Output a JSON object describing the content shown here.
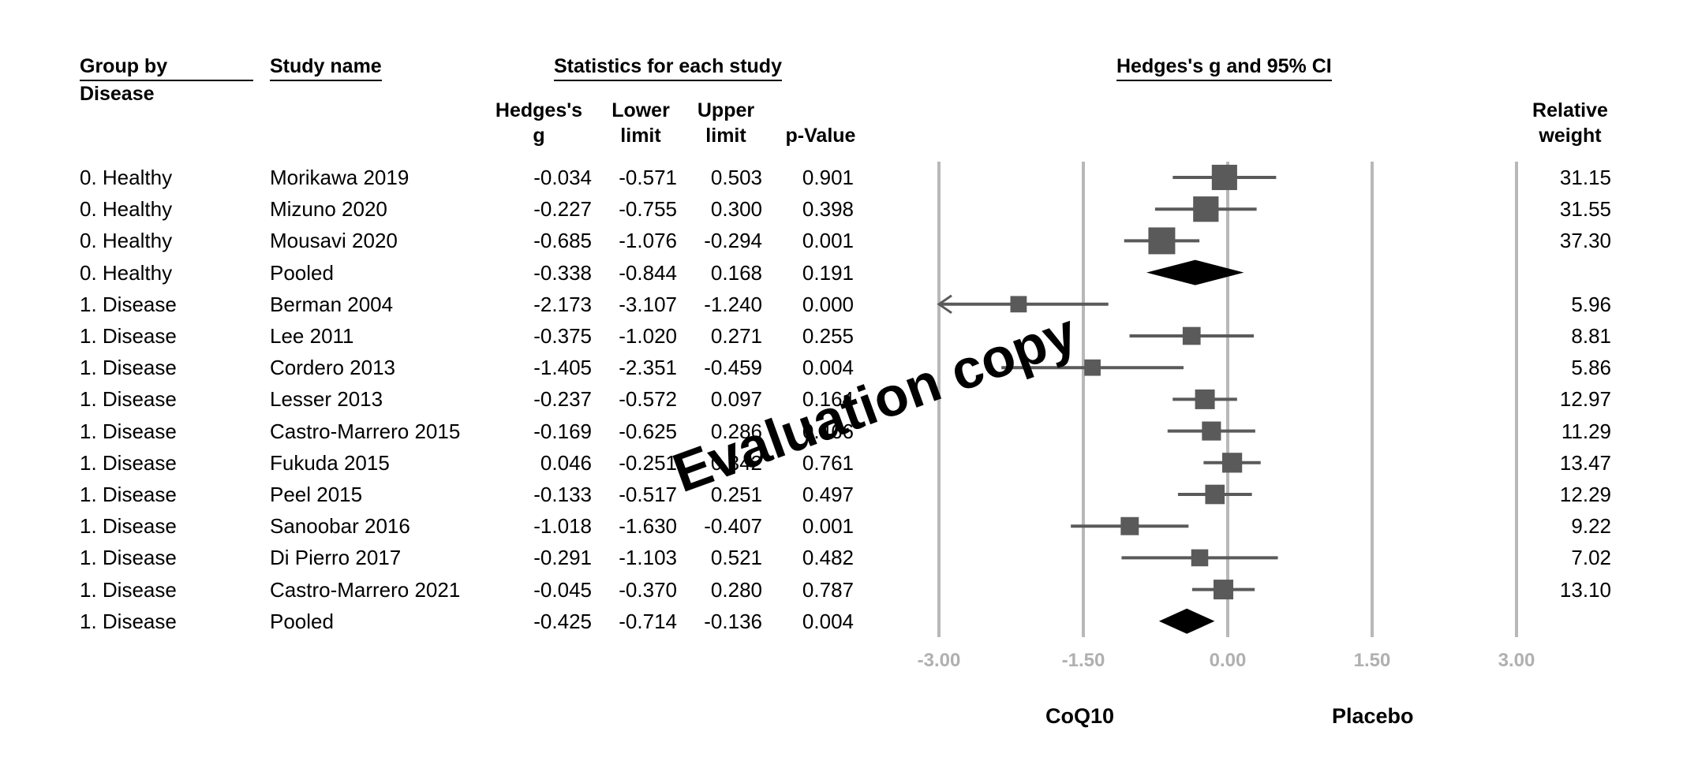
{
  "headers": {
    "group": "Group by",
    "group_sub": "Disease",
    "study": "Study name",
    "stats": "Statistics for each study",
    "plot": "Hedges's g and 95% CI",
    "g_line1": "Hedges's",
    "g_line2": "g",
    "lower_line1": "Lower",
    "lower_line2": "limit",
    "upper_line1": "Upper",
    "upper_line2": "limit",
    "pvalue": "p-Value",
    "weight_line1": "Relative",
    "weight_line2": "weight"
  },
  "watermark": "Evaluation copy",
  "chart_data": {
    "type": "forest",
    "title": "Hedges's g and 95% CI",
    "xlim": [
      -3.0,
      3.0
    ],
    "xticks": [
      "-3.00",
      "-1.50",
      "0.00",
      "1.50",
      "3.00"
    ],
    "xtick_values": [
      -3.0,
      -1.5,
      0.0,
      1.5,
      3.0
    ],
    "left_label": "CoQ10",
    "right_label": "Placebo",
    "rows": [
      {
        "group": "0. Healthy",
        "study": "Morikawa 2019",
        "g": "-0.034",
        "lower": "-0.571",
        "upper": "0.503",
        "p": "0.901",
        "weight": "31.15",
        "pooled": false
      },
      {
        "group": "0. Healthy",
        "study": "Mizuno 2020",
        "g": "-0.227",
        "lower": "-0.755",
        "upper": "0.300",
        "p": "0.398",
        "weight": "31.55",
        "pooled": false
      },
      {
        "group": "0. Healthy",
        "study": "Mousavi 2020",
        "g": "-0.685",
        "lower": "-1.076",
        "upper": "-0.294",
        "p": "0.001",
        "weight": "37.30",
        "pooled": false
      },
      {
        "group": "0. Healthy",
        "study": "Pooled",
        "g": "-0.338",
        "lower": "-0.844",
        "upper": "0.168",
        "p": "0.191",
        "weight": "",
        "pooled": true
      },
      {
        "group": "1. Disease",
        "study": "Berman 2004",
        "g": "-2.173",
        "lower": "-3.107",
        "upper": "-1.240",
        "p": "0.000",
        "weight": "5.96",
        "pooled": false
      },
      {
        "group": "1. Disease",
        "study": "Lee 2011",
        "g": "-0.375",
        "lower": "-1.020",
        "upper": "0.271",
        "p": "0.255",
        "weight": "8.81",
        "pooled": false
      },
      {
        "group": "1. Disease",
        "study": "Cordero 2013",
        "g": "-1.405",
        "lower": "-2.351",
        "upper": "-0.459",
        "p": "0.004",
        "weight": "5.86",
        "pooled": false
      },
      {
        "group": "1. Disease",
        "study": "Lesser 2013",
        "g": "-0.237",
        "lower": "-0.572",
        "upper": "0.097",
        "p": "0.164",
        "weight": "12.97",
        "pooled": false
      },
      {
        "group": "1. Disease",
        "study": "Castro-Marrero 2015",
        "g": "-0.169",
        "lower": "-0.625",
        "upper": "0.286",
        "p": "0.466",
        "weight": "11.29",
        "pooled": false
      },
      {
        "group": "1. Disease",
        "study": "Fukuda 2015",
        "g": "0.046",
        "lower": "-0.251",
        "upper": "0.342",
        "p": "0.761",
        "weight": "13.47",
        "pooled": false
      },
      {
        "group": "1. Disease",
        "study": "Peel 2015",
        "g": "-0.133",
        "lower": "-0.517",
        "upper": "0.251",
        "p": "0.497",
        "weight": "12.29",
        "pooled": false
      },
      {
        "group": "1. Disease",
        "study": "Sanoobar 2016",
        "g": "-1.018",
        "lower": "-1.630",
        "upper": "-0.407",
        "p": "0.001",
        "weight": "9.22",
        "pooled": false
      },
      {
        "group": "1. Disease",
        "study": "Di Pierro 2017",
        "g": "-0.291",
        "lower": "-1.103",
        "upper": "0.521",
        "p": "0.482",
        "weight": "7.02",
        "pooled": false
      },
      {
        "group": "1. Disease",
        "study": "Castro-Marrero 2021",
        "g": "-0.045",
        "lower": "-0.370",
        "upper": "0.280",
        "p": "0.787",
        "weight": "13.10",
        "pooled": false
      },
      {
        "group": "1. Disease",
        "study": "Pooled",
        "g": "-0.425",
        "lower": "-0.714",
        "upper": "-0.136",
        "p": "0.004",
        "weight": "",
        "pooled": true
      }
    ],
    "colors": {
      "marker": "#5a5a5a",
      "pooled": "#000000",
      "gridline": "#b8b8b8",
      "tick_label": "#b0b0b0"
    }
  }
}
